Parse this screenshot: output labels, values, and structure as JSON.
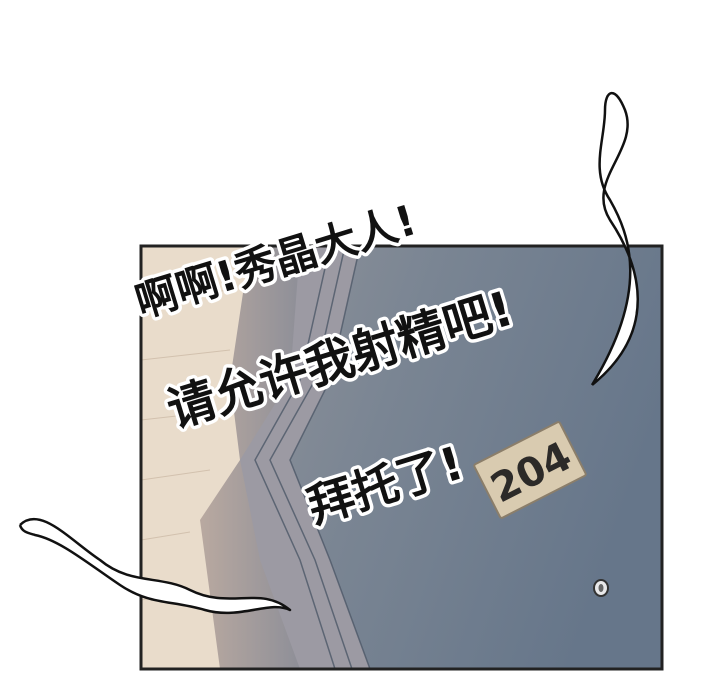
{
  "panel": {
    "door_number": "204"
  },
  "dialogue": {
    "line1": "啊啊!秀晶大人!",
    "line2": "请允许我射精吧!",
    "line3": "拜托了!"
  },
  "colors": {
    "door": "#6f7d8d",
    "door_frame": "#9aa3ab",
    "wall": "#e8d9c8",
    "border": "#222222",
    "plate": "#d9cbb0"
  }
}
